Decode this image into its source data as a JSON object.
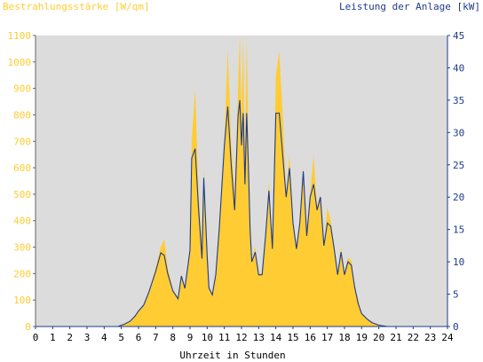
{
  "chart_data": {
    "type": "area",
    "left_axis_label": "Bestrahlungsstärke [W/qm]",
    "right_axis_label": "Leistung der Anlage [kW]",
    "xlabel": "Uhrzeit in Stunden",
    "xlim": [
      0,
      24
    ],
    "y_left_lim": [
      0,
      1100
    ],
    "y_right_lim": [
      0,
      45
    ],
    "x_ticks": [
      "0",
      "1",
      "2",
      "3",
      "4",
      "5",
      "6",
      "7",
      "8",
      "9",
      "10",
      "11",
      "12",
      "13",
      "14",
      "15",
      "16",
      "17",
      "18",
      "19",
      "20",
      "21",
      "22",
      "23",
      "24"
    ],
    "y_left_ticks": [
      "0",
      "100",
      "200",
      "300",
      "400",
      "500",
      "600",
      "700",
      "800",
      "900",
      "1000",
      "1100"
    ],
    "y_right_ticks": [
      "0",
      "5",
      "10",
      "15",
      "20",
      "25",
      "30",
      "35",
      "40",
      "45"
    ],
    "grid": false,
    "colors": {
      "irradiance": "#ffcc33",
      "power": "#1f3a8a",
      "plot_bg": "#dcdcdc"
    },
    "series": [
      {
        "name": "Bestrahlungsstärke [W/qm]",
        "axis": "left",
        "style": "area",
        "x": [
          0,
          4.8,
          5.2,
          5.5,
          5.8,
          6.0,
          6.3,
          6.6,
          7.0,
          7.3,
          7.5,
          7.7,
          8.0,
          8.3,
          8.5,
          8.7,
          9.0,
          9.1,
          9.3,
          9.5,
          9.7,
          9.8,
          10.0,
          10.1,
          10.3,
          10.5,
          10.7,
          11.0,
          11.2,
          11.4,
          11.6,
          11.8,
          11.9,
          12.0,
          12.1,
          12.2,
          12.3,
          12.4,
          12.5,
          12.6,
          12.8,
          13.0,
          13.2,
          13.4,
          13.6,
          13.8,
          14.0,
          14.2,
          14.4,
          14.6,
          14.8,
          15.0,
          15.2,
          15.4,
          15.6,
          15.8,
          16.0,
          16.2,
          16.4,
          16.6,
          16.8,
          17.0,
          17.2,
          17.4,
          17.6,
          17.8,
          18.0,
          18.2,
          18.4,
          18.6,
          18.8,
          19.0,
          19.3,
          19.6,
          20.0,
          20.5,
          21,
          24
        ],
        "values": [
          0,
          0,
          10,
          20,
          40,
          60,
          80,
          130,
          220,
          300,
          330,
          220,
          140,
          110,
          200,
          150,
          300,
          700,
          900,
          500,
          300,
          600,
          300,
          150,
          120,
          200,
          400,
          700,
          1050,
          700,
          500,
          900,
          1100,
          800,
          1100,
          600,
          1100,
          700,
          400,
          250,
          300,
          200,
          200,
          350,
          550,
          300,
          950,
          1040,
          800,
          500,
          650,
          400,
          300,
          400,
          600,
          350,
          500,
          650,
          450,
          500,
          300,
          450,
          400,
          300,
          200,
          300,
          200,
          260,
          250,
          150,
          100,
          50,
          30,
          15,
          5,
          0,
          0,
          0
        ]
      },
      {
        "name": "Leistung der Anlage [kW]",
        "axis": "right",
        "style": "line",
        "x": [
          0,
          4.8,
          5.2,
          5.5,
          5.8,
          6.0,
          6.3,
          6.6,
          7.0,
          7.3,
          7.5,
          7.7,
          8.0,
          8.3,
          8.5,
          8.7,
          9.0,
          9.1,
          9.3,
          9.5,
          9.7,
          9.8,
          10.0,
          10.1,
          10.3,
          10.5,
          10.7,
          11.0,
          11.2,
          11.4,
          11.6,
          11.8,
          11.9,
          12.0,
          12.1,
          12.2,
          12.3,
          12.4,
          12.5,
          12.6,
          12.8,
          13.0,
          13.2,
          13.4,
          13.6,
          13.8,
          14.0,
          14.2,
          14.4,
          14.6,
          14.8,
          15.0,
          15.2,
          15.4,
          15.6,
          15.8,
          16.0,
          16.2,
          16.4,
          16.6,
          16.8,
          17.0,
          17.2,
          17.4,
          17.6,
          17.8,
          18.0,
          18.2,
          18.4,
          18.6,
          18.8,
          19.0,
          19.3,
          19.6,
          20.0,
          20.5,
          21,
          24
        ],
        "values": [
          0,
          0,
          0.4,
          0.8,
          1.6,
          2.4,
          3.3,
          5.3,
          8.5,
          11.4,
          11.0,
          8.2,
          5.5,
          4.3,
          7.8,
          5.9,
          11.8,
          26.0,
          27.5,
          18.0,
          10.5,
          23.0,
          11.0,
          6.0,
          4.9,
          8.0,
          15.0,
          28.0,
          34.0,
          25.0,
          18.0,
          32.5,
          35.0,
          28.0,
          33.0,
          22.0,
          33.0,
          25.0,
          15.0,
          10.0,
          11.5,
          8.0,
          8.0,
          14.0,
          21.0,
          12.0,
          33.0,
          33.0,
          26.5,
          20.0,
          24.5,
          16.0,
          12.0,
          16.0,
          24.0,
          14.0,
          20.0,
          22.0,
          18.0,
          20.0,
          12.5,
          16.0,
          15.5,
          12.0,
          8.0,
          11.5,
          8.0,
          10.0,
          9.5,
          6.0,
          3.5,
          2.0,
          1.2,
          0.6,
          0.2,
          0,
          0,
          0
        ]
      }
    ]
  }
}
